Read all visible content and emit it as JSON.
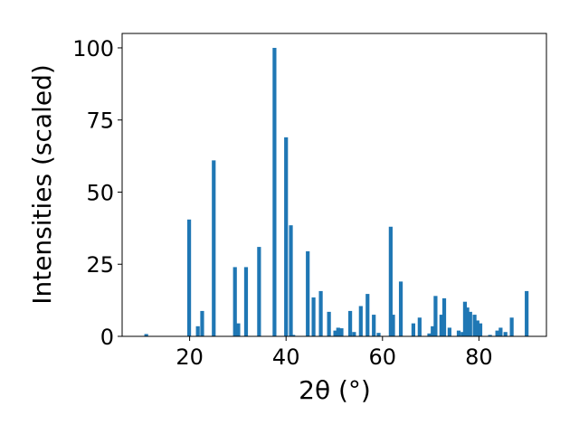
{
  "chart_data": {
    "type": "bar",
    "xlabel": "2θ (°)",
    "ylabel": "Intensities (scaled)",
    "xlim": [
      6.0,
      94.0
    ],
    "ylim": [
      0,
      105
    ],
    "xticks": [
      20,
      40,
      60,
      80
    ],
    "yticks": [
      0,
      25,
      50,
      75,
      100
    ],
    "bar_color": "#1f77b4",
    "grid": false,
    "legend": "none",
    "x": [
      11.0,
      19.9,
      21.7,
      22.6,
      25.0,
      29.4,
      30.1,
      31.7,
      34.4,
      37.6,
      40.0,
      41.0,
      41.5,
      44.5,
      45.7,
      47.2,
      48.9,
      50.2,
      50.8,
      51.5,
      53.3,
      54.1,
      55.5,
      56.9,
      58.2,
      59.2,
      61.7,
      62.2,
      63.8,
      66.4,
      67.7,
      69.7,
      70.4,
      71.0,
      72.2,
      72.8,
      73.9,
      75.8,
      76.6,
      77.1,
      77.6,
      78.2,
      79.1,
      79.7,
      80.3,
      82.3,
      83.8,
      84.5,
      85.5,
      86.8,
      89.9
    ],
    "values": [
      0.8,
      40.5,
      3.5,
      8.8,
      61.0,
      24.0,
      4.5,
      24.0,
      31.0,
      100.0,
      69.0,
      38.5,
      0.5,
      29.5,
      13.5,
      15.7,
      8.5,
      2.0,
      3.0,
      2.8,
      8.8,
      1.5,
      10.5,
      14.7,
      7.5,
      1.2,
      38.0,
      7.5,
      19.0,
      4.5,
      6.5,
      1.0,
      3.5,
      14.0,
      7.5,
      13.2,
      3.0,
      2.0,
      1.5,
      12.0,
      10.0,
      8.5,
      7.5,
      5.5,
      4.5,
      0.5,
      2.0,
      3.0,
      1.5,
      6.5,
      15.7
    ]
  }
}
